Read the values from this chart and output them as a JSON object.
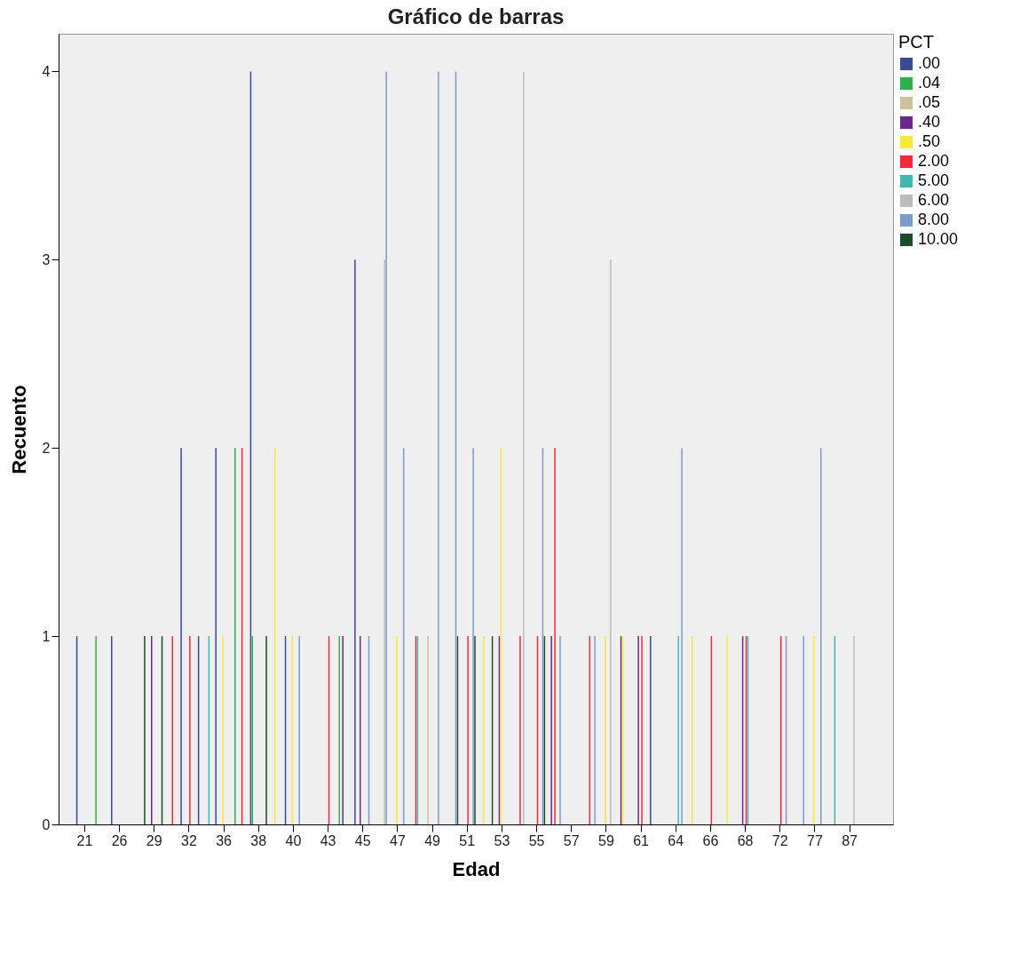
{
  "chart_data": {
    "type": "bar",
    "title": "Gráfico de barras",
    "xlabel": "Edad",
    "ylabel": "Recuento",
    "legend_title": "PCT",
    "legend": "top right",
    "grid": false,
    "categories": [
      "21",
      null,
      "26",
      null,
      "29",
      null,
      "32",
      null,
      "36",
      null,
      "38",
      null,
      "40",
      null,
      "43",
      null,
      "45",
      null,
      "47",
      null,
      "49",
      null,
      "51",
      null,
      "53",
      null,
      "55",
      null,
      "57",
      null,
      "59",
      null,
      "61",
      null,
      "64",
      null,
      "66",
      null,
      "68",
      null,
      "72",
      null,
      "77",
      null,
      "87",
      null
    ],
    "ylim": [
      0,
      4.2
    ],
    "yticks": [
      0,
      1,
      2,
      3,
      4
    ],
    "series": [
      {
        "name": ".00",
        "color": "#3b4994",
        "values": [
          1,
          null,
          1,
          null,
          null,
          null,
          2,
          1,
          2,
          null,
          4,
          null,
          1,
          null,
          null,
          null,
          3,
          null,
          null,
          null,
          null,
          null,
          null,
          null,
          null,
          null,
          null,
          null,
          null,
          null,
          null,
          null,
          null,
          1,
          null,
          null,
          null,
          null,
          null,
          null,
          null,
          null,
          null,
          null,
          null,
          null
        ]
      },
      {
        "name": ".04",
        "color": "#2eae4f",
        "values": [
          null,
          1,
          null,
          null,
          null,
          null,
          null,
          null,
          null,
          2,
          1,
          null,
          null,
          null,
          null,
          1,
          null,
          null,
          null,
          null,
          null,
          null,
          null,
          null,
          null,
          null,
          null,
          null,
          null,
          null,
          null,
          null,
          null,
          null,
          null,
          null,
          null,
          null,
          null,
          null,
          null,
          null,
          null,
          null,
          null,
          null
        ]
      },
      {
        "name": ".05",
        "color": "#c8c39a",
        "values": [
          null,
          null,
          null,
          null,
          null,
          null,
          null,
          null,
          null,
          null,
          null,
          null,
          null,
          null,
          null,
          null,
          null,
          null,
          null,
          null,
          1,
          null,
          null,
          null,
          null,
          null,
          null,
          null,
          null,
          null,
          null,
          null,
          null,
          null,
          null,
          null,
          null,
          null,
          null,
          null,
          null,
          null,
          null,
          null,
          null,
          null
        ]
      },
      {
        "name": ".40",
        "color": "#6a2a8a",
        "values": [
          null,
          null,
          null,
          null,
          1,
          null,
          null,
          null,
          null,
          null,
          null,
          null,
          null,
          null,
          null,
          1,
          1,
          null,
          null,
          null,
          null,
          null,
          null,
          null,
          1,
          null,
          null,
          1,
          null,
          null,
          null,
          1,
          1,
          null,
          null,
          null,
          null,
          null,
          1,
          null,
          null,
          null,
          null,
          null,
          null,
          null
        ]
      },
      {
        "name": ".50",
        "color": "#f7e93b",
        "values": [
          null,
          null,
          null,
          null,
          null,
          null,
          null,
          null,
          1,
          null,
          null,
          2,
          1,
          null,
          null,
          null,
          null,
          null,
          1,
          null,
          null,
          null,
          null,
          1,
          2,
          null,
          null,
          null,
          null,
          null,
          1,
          1,
          null,
          null,
          null,
          1,
          null,
          1,
          null,
          null,
          null,
          null,
          1,
          null,
          null,
          null
        ]
      },
      {
        "name": "2.00",
        "color": "#ee2a3c",
        "values": [
          null,
          null,
          null,
          null,
          null,
          1,
          1,
          null,
          null,
          2,
          null,
          null,
          null,
          null,
          1,
          null,
          null,
          null,
          null,
          1,
          null,
          null,
          1,
          null,
          null,
          1,
          1,
          2,
          null,
          1,
          null,
          null,
          1,
          null,
          null,
          null,
          1,
          null,
          1,
          null,
          1,
          null,
          null,
          null,
          null,
          null
        ]
      },
      {
        "name": "5.00",
        "color": "#3fb8b0",
        "values": [
          null,
          null,
          null,
          null,
          null,
          null,
          null,
          1,
          null,
          null,
          null,
          null,
          null,
          null,
          null,
          null,
          null,
          null,
          null,
          1,
          null,
          null,
          null,
          null,
          null,
          null,
          null,
          null,
          null,
          null,
          null,
          null,
          null,
          null,
          1,
          null,
          null,
          null,
          1,
          null,
          null,
          null,
          null,
          1,
          null,
          null
        ]
      },
      {
        "name": "6.00",
        "color": "#bcbcc0",
        "values": [
          null,
          null,
          null,
          null,
          null,
          null,
          null,
          null,
          null,
          null,
          null,
          null,
          null,
          null,
          null,
          null,
          null,
          3,
          null,
          null,
          null,
          null,
          null,
          null,
          null,
          4,
          null,
          null,
          null,
          null,
          3,
          null,
          null,
          null,
          null,
          null,
          null,
          null,
          null,
          null,
          null,
          null,
          null,
          null,
          1,
          null
        ]
      },
      {
        "name": "8.00",
        "color": "#7c9cc9",
        "values": [
          null,
          null,
          null,
          null,
          null,
          null,
          null,
          null,
          null,
          null,
          null,
          null,
          1,
          null,
          null,
          null,
          1,
          4,
          2,
          null,
          4,
          4,
          2,
          null,
          null,
          null,
          2,
          1,
          null,
          1,
          null,
          null,
          null,
          null,
          2,
          null,
          null,
          null,
          null,
          null,
          1,
          1,
          2,
          null,
          null,
          null
        ]
      },
      {
        "name": "10.00",
        "color": "#1d4b2c",
        "values": [
          null,
          null,
          null,
          1,
          1,
          null,
          null,
          null,
          null,
          null,
          1,
          null,
          null,
          null,
          null,
          null,
          null,
          null,
          null,
          null,
          null,
          1,
          1,
          1,
          null,
          null,
          1,
          null,
          null,
          null,
          null,
          null,
          null,
          null,
          null,
          null,
          null,
          null,
          null,
          null,
          null,
          null,
          null,
          null,
          null,
          null
        ]
      }
    ]
  }
}
